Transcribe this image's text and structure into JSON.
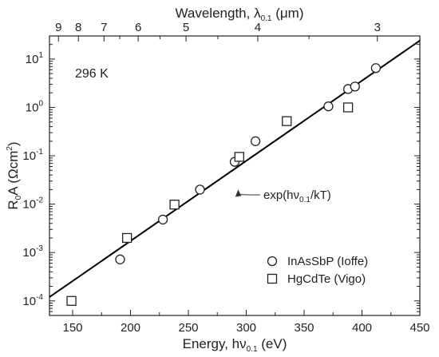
{
  "chart_data": {
    "type": "scatter",
    "x_axis": {
      "title_main": "Energy, h",
      "title_symbol": "ν",
      "title_sub": "0.1",
      "title_unit": " (eV)",
      "range": [
        130,
        450
      ],
      "ticks": [
        "150",
        "200",
        "250",
        "300",
        "350",
        "400",
        "450"
      ],
      "tick_values": [
        150,
        200,
        250,
        300,
        350,
        400,
        450
      ]
    },
    "top_axis": {
      "title_main": "Wavelength, ",
      "title_symbol": "λ",
      "title_sub": "0.1",
      "title_unit": " (μm)",
      "ticks": [
        "9",
        "8",
        "7",
        "6",
        "5",
        "4",
        "3"
      ],
      "tick_values": [
        9,
        8,
        7,
        6,
        5,
        4,
        3
      ]
    },
    "y_axis": {
      "scale": "log",
      "title_r": "R",
      "title_r_sub": "0",
      "title_a": "A (Ωcm",
      "title_sup": "2",
      "title_end": ")",
      "range": [
        5e-05,
        30
      ],
      "tick_base": "10",
      "tick_exponents": [
        "-4",
        "-3",
        "-2",
        "-1",
        "0",
        "1"
      ],
      "tick_values": [
        0.0001,
        0.001,
        0.01,
        0.1,
        1,
        10
      ]
    },
    "temperature_label": "296 K",
    "series": [
      {
        "name": "InAsSbP (Ioffe)",
        "marker": "circle",
        "x": [
          191,
          228,
          260,
          290,
          308,
          371,
          388,
          394,
          412
        ],
        "y": [
          0.00072,
          0.0048,
          0.02,
          0.075,
          0.2,
          1.05,
          2.4,
          2.7,
          6.5
        ]
      },
      {
        "name": "HgCdTe (Vigo)",
        "marker": "square",
        "x": [
          149,
          197,
          238,
          294,
          335,
          388
        ],
        "y": [
          0.0001,
          0.002,
          0.0098,
          0.095,
          0.52,
          1.0
        ]
      }
    ],
    "fit_line": {
      "x": [
        130,
        450
      ],
      "y": [
        0.00012,
        24
      ]
    },
    "annotation": {
      "text_main": "exp(h",
      "symbol": "ν",
      "sub": "0.1",
      "text_end": "/kT)",
      "arrow_target": [
        293,
        0.02
      ]
    },
    "grid": false,
    "legend_position": "bottom-right"
  }
}
